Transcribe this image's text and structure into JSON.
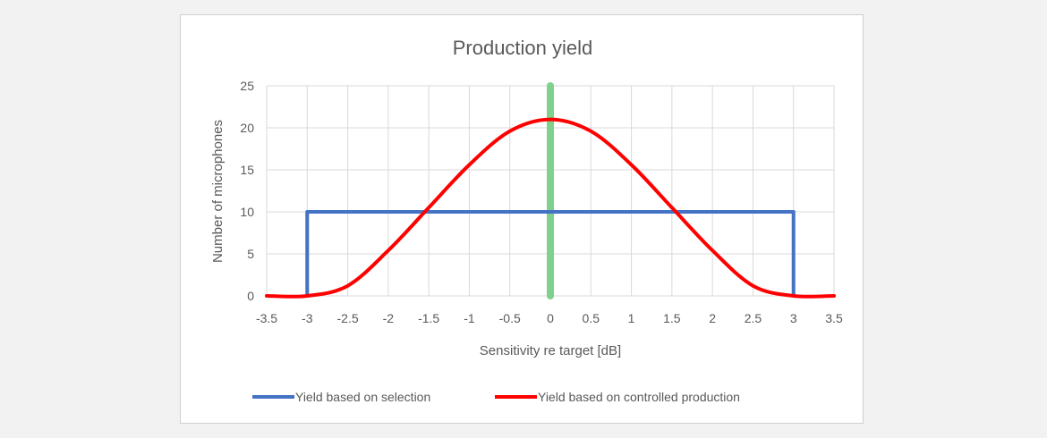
{
  "chart_data": {
    "type": "line",
    "title": "Production yield",
    "xlabel": "Sensitivity re target [dB]",
    "ylabel": "Number of microphones",
    "xlim": [
      -3.5,
      3.5
    ],
    "ylim": [
      0,
      25
    ],
    "xticks": [
      "-3.5",
      "-3",
      "-2.5",
      "-2",
      "-1.5",
      "-1",
      "-0.5",
      "0",
      "0.5",
      "1",
      "1.5",
      "2",
      "2.5",
      "3",
      "3.5"
    ],
    "yticks": [
      "0",
      "5",
      "10",
      "15",
      "20",
      "25"
    ],
    "grid": true,
    "legend_position": "bottom",
    "series": [
      {
        "name": "Yield based on selection",
        "color": "#4472c4",
        "x": [
          -3,
          -3,
          3,
          3
        ],
        "y": [
          0,
          10,
          10,
          0
        ]
      },
      {
        "name": "Yield based on controlled production",
        "color": "#ff0000",
        "x": [
          -3.5,
          -3,
          -2.5,
          -2,
          -1.5,
          -1,
          -0.5,
          0,
          0.5,
          1,
          1.5,
          2,
          2.5,
          3,
          3.5
        ],
        "y": [
          0,
          0,
          1.2,
          5.4,
          10.5,
          15.6,
          19.6,
          21,
          19.6,
          15.6,
          10.5,
          5.4,
          1.2,
          0,
          0
        ]
      }
    ],
    "annotations": [
      {
        "name": "target marker",
        "color": "#7fd18c",
        "x": 0,
        "y_range": [
          0,
          25
        ]
      }
    ]
  }
}
